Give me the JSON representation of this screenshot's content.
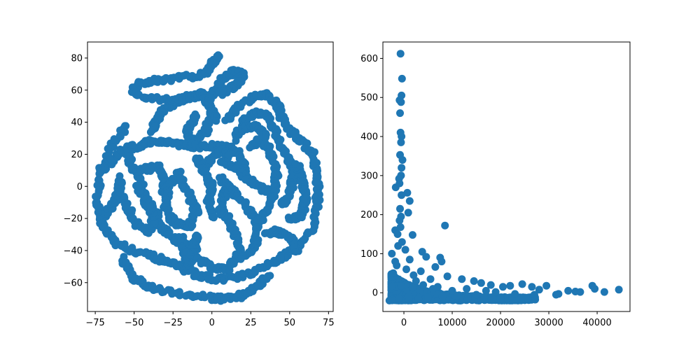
{
  "figure": {
    "background": "#ffffff",
    "marker_color": "#1f77b4"
  },
  "chart_data": [
    {
      "type": "scatter",
      "title": "",
      "xlabel": "",
      "ylabel": "",
      "xlim": [
        -80,
        78
      ],
      "ylim": [
        -78,
        90
      ],
      "xticks": [
        -75,
        -50,
        -25,
        0,
        25,
        50,
        75
      ],
      "yticks": [
        -60,
        -40,
        -20,
        0,
        20,
        40,
        60,
        80
      ],
      "grid": false,
      "legend": "none",
      "color": "#1f77b4",
      "point_count_note": "dense continuous strands",
      "strands": [
        [
          [
            -15,
            56
          ],
          [
            -25,
            52
          ],
          [
            -32,
            47
          ],
          [
            -36,
            41
          ],
          [
            -38,
            35
          ]
        ],
        [
          [
            -10,
            44
          ],
          [
            -16,
            36
          ],
          [
            -13,
            28
          ],
          [
            -4,
            34
          ],
          [
            0,
            44
          ]
        ],
        [
          [
            -50,
            62
          ],
          [
            -40,
            66
          ],
          [
            -25,
            67
          ],
          [
            -5,
            70
          ],
          [
            0,
            76
          ],
          [
            5,
            82
          ]
        ],
        [
          [
            -50,
            58
          ],
          [
            -40,
            55
          ],
          [
            -25,
            54
          ],
          [
            -10,
            56
          ],
          [
            -5,
            58
          ]
        ],
        [
          [
            -5,
            58
          ],
          [
            -3,
            52
          ],
          [
            0,
            46
          ],
          [
            2,
            42
          ]
        ],
        [
          [
            -3,
            52
          ],
          [
            2,
            60
          ],
          [
            8,
            68
          ],
          [
            15,
            72
          ],
          [
            20,
            70
          ],
          [
            17,
            64
          ],
          [
            10,
            60
          ],
          [
            5,
            58
          ]
        ],
        [
          [
            -55,
            38
          ],
          [
            -65,
            25
          ],
          [
            -72,
            5
          ],
          [
            -74,
            -10
          ],
          [
            -70,
            -25
          ],
          [
            -62,
            -35
          ],
          [
            -50,
            -40
          ],
          [
            -35,
            -45
          ],
          [
            -22,
            -50
          ],
          [
            -10,
            -55
          ],
          [
            5,
            -58
          ],
          [
            20,
            -56
          ],
          [
            35,
            -50
          ],
          [
            45,
            -44
          ]
        ],
        [
          [
            -58,
            -45
          ],
          [
            -50,
            -58
          ],
          [
            -35,
            -64
          ],
          [
            -15,
            -68
          ],
          [
            5,
            -70
          ],
          [
            20,
            -68
          ],
          [
            30,
            -62
          ],
          [
            36,
            -55
          ]
        ],
        [
          [
            -55,
            20
          ],
          [
            -50,
            10
          ],
          [
            -45,
            0
          ],
          [
            -42,
            -10
          ],
          [
            -38,
            -20
          ],
          [
            -30,
            -28
          ],
          [
            -22,
            -34
          ],
          [
            -10,
            -38
          ]
        ],
        [
          [
            -48,
            24
          ],
          [
            -40,
            28
          ],
          [
            -30,
            28
          ],
          [
            -20,
            26
          ],
          [
            -10,
            25
          ],
          [
            0,
            25
          ],
          [
            10,
            24
          ],
          [
            18,
            20
          ],
          [
            22,
            10
          ]
        ],
        [
          [
            -60,
            -2
          ],
          [
            -55,
            -12
          ],
          [
            -50,
            -22
          ],
          [
            -40,
            -28
          ],
          [
            -35,
            -18
          ],
          [
            -42,
            -8
          ],
          [
            -48,
            0
          ]
        ],
        [
          [
            -45,
            10
          ],
          [
            -35,
            12
          ],
          [
            -30,
            5
          ],
          [
            -32,
            -5
          ]
        ],
        [
          [
            -20,
            10
          ],
          [
            -28,
            0
          ],
          [
            -30,
            -12
          ],
          [
            -25,
            -22
          ],
          [
            -15,
            -25
          ],
          [
            -10,
            -15
          ],
          [
            -15,
            -5
          ],
          [
            -20,
            5
          ]
        ],
        [
          [
            -20,
            -30
          ],
          [
            -18,
            -42
          ],
          [
            -15,
            -50
          ],
          [
            -12,
            -40
          ],
          [
            -10,
            -30
          ]
        ],
        [
          [
            -10,
            18
          ],
          [
            -5,
            10
          ],
          [
            0,
            0
          ],
          [
            -2,
            -10
          ],
          [
            0,
            -20
          ]
        ],
        [
          [
            -10,
            -45
          ],
          [
            0,
            -50
          ],
          [
            10,
            -52
          ],
          [
            18,
            -40
          ],
          [
            15,
            -30
          ],
          [
            10,
            -20
          ],
          [
            5,
            -15
          ],
          [
            8,
            -5
          ],
          [
            12,
            0
          ]
        ],
        [
          [
            5,
            5
          ],
          [
            15,
            -5
          ],
          [
            25,
            -15
          ],
          [
            30,
            -25
          ],
          [
            28,
            -35
          ],
          [
            20,
            -45
          ]
        ],
        [
          [
            5,
            15
          ],
          [
            15,
            12
          ],
          [
            22,
            5
          ],
          [
            30,
            0
          ],
          [
            38,
            -5
          ]
        ],
        [
          [
            -2,
            15
          ],
          [
            2,
            20
          ],
          [
            8,
            22
          ],
          [
            12,
            18
          ]
        ],
        [
          [
            10,
            42
          ],
          [
            15,
            48
          ],
          [
            25,
            55
          ],
          [
            35,
            57
          ],
          [
            42,
            52
          ],
          [
            45,
            42
          ],
          [
            50,
            35
          ],
          [
            58,
            28
          ],
          [
            65,
            20
          ],
          [
            68,
            5
          ],
          [
            68,
            -10
          ],
          [
            65,
            -25
          ],
          [
            55,
            -38
          ],
          [
            45,
            -44
          ]
        ],
        [
          [
            15,
            30
          ],
          [
            20,
            40
          ],
          [
            28,
            46
          ],
          [
            35,
            44
          ],
          [
            40,
            35
          ],
          [
            45,
            25
          ],
          [
            50,
            15
          ],
          [
            52,
            5
          ],
          [
            50,
            -5
          ],
          [
            45,
            -12
          ]
        ],
        [
          [
            25,
            25
          ],
          [
            32,
            30
          ],
          [
            38,
            20
          ],
          [
            42,
            8
          ],
          [
            40,
            -5
          ],
          [
            35,
            -15
          ],
          [
            30,
            -22
          ]
        ],
        [
          [
            20,
            35
          ],
          [
            28,
            38
          ],
          [
            35,
            32
          ]
        ],
        [
          [
            50,
            -20
          ],
          [
            58,
            -18
          ],
          [
            60,
            -8
          ],
          [
            58,
            5
          ],
          [
            55,
            15
          ]
        ],
        [
          [
            35,
            -30
          ],
          [
            42,
            -28
          ],
          [
            50,
            -32
          ],
          [
            55,
            -40
          ]
        ],
        [
          [
            -68,
            -18
          ],
          [
            -62,
            -8
          ],
          [
            -58,
            5
          ]
        ],
        [
          [
            -72,
            10
          ],
          [
            -65,
            15
          ],
          [
            -58,
            22
          ],
          [
            -50,
            25
          ]
        ]
      ]
    },
    {
      "type": "scatter",
      "title": "",
      "xlabel": "",
      "ylabel": "",
      "xlim": [
        -4350,
        46800
      ],
      "ylim": [
        -48,
        642
      ],
      "xticks": [
        0,
        10000,
        20000,
        30000,
        40000
      ],
      "yticks": [
        0,
        100,
        200,
        300,
        400,
        500,
        600
      ],
      "grid": false,
      "legend": "none",
      "color": "#1f77b4",
      "points": [
        [
          -700,
          612
        ],
        [
          -400,
          548
        ],
        [
          -500,
          505
        ],
        [
          -900,
          493
        ],
        [
          -600,
          488
        ],
        [
          -800,
          460
        ],
        [
          -700,
          410
        ],
        [
          -500,
          400
        ],
        [
          -600,
          385
        ],
        [
          -800,
          353
        ],
        [
          -300,
          340
        ],
        [
          -500,
          320
        ],
        [
          -600,
          300
        ],
        [
          -1000,
          292
        ],
        [
          -1700,
          270
        ],
        [
          -900,
          280
        ],
        [
          700,
          256
        ],
        [
          -500,
          250
        ],
        [
          1200,
          235
        ],
        [
          -800,
          215
        ],
        [
          -600,
          195
        ],
        [
          900,
          205
        ],
        [
          -900,
          185
        ],
        [
          8500,
          172
        ],
        [
          -1800,
          160
        ],
        [
          -700,
          168
        ],
        [
          1800,
          148
        ],
        [
          -1300,
          150
        ],
        [
          3800,
          105
        ],
        [
          4600,
          92
        ],
        [
          7500,
          90
        ],
        [
          7800,
          80
        ],
        [
          6500,
          66
        ],
        [
          -2500,
          100
        ],
        [
          9000,
          42
        ],
        [
          12000,
          35
        ],
        [
          14500,
          30
        ],
        [
          16000,
          25
        ],
        [
          18000,
          20
        ],
        [
          20500,
          15
        ],
        [
          22000,
          18
        ],
        [
          24500,
          22
        ],
        [
          26500,
          15
        ],
        [
          28000,
          8
        ],
        [
          29500,
          18
        ],
        [
          31500,
          -5
        ],
        [
          34000,
          5
        ],
        [
          35500,
          3
        ],
        [
          36500,
          2
        ],
        [
          39000,
          18
        ],
        [
          39500,
          10
        ],
        [
          41500,
          2
        ],
        [
          44500,
          8
        ],
        [
          32000,
          -3
        ],
        [
          27000,
          -5
        ],
        [
          23000,
          -3
        ],
        [
          19000,
          2
        ],
        [
          15000,
          -5
        ],
        [
          11000,
          -8
        ],
        [
          8000,
          -10
        ],
        [
          5000,
          -12
        ],
        [
          3000,
          -15
        ],
        [
          1000,
          -10
        ],
        [
          -1000,
          -15
        ],
        [
          -2500,
          -18
        ],
        [
          -3000,
          -20
        ],
        [
          2000,
          45
        ],
        [
          500,
          60
        ],
        [
          -1500,
          70
        ],
        [
          2500,
          30
        ],
        [
          4000,
          20
        ],
        [
          6000,
          10
        ],
        [
          -1200,
          120
        ],
        [
          -400,
          130
        ],
        [
          300,
          110
        ],
        [
          -1800,
          80
        ],
        [
          1200,
          85
        ],
        [
          -2200,
          50
        ],
        [
          3500,
          55
        ],
        [
          5500,
          35
        ],
        [
          7000,
          15
        ],
        [
          10000,
          5
        ],
        [
          13000,
          10
        ],
        [
          17000,
          5
        ]
      ],
      "dense_core": "large mass of points near x≈-2500..9000, y≈-20..60, thinning tail to x≈30000"
    }
  ]
}
